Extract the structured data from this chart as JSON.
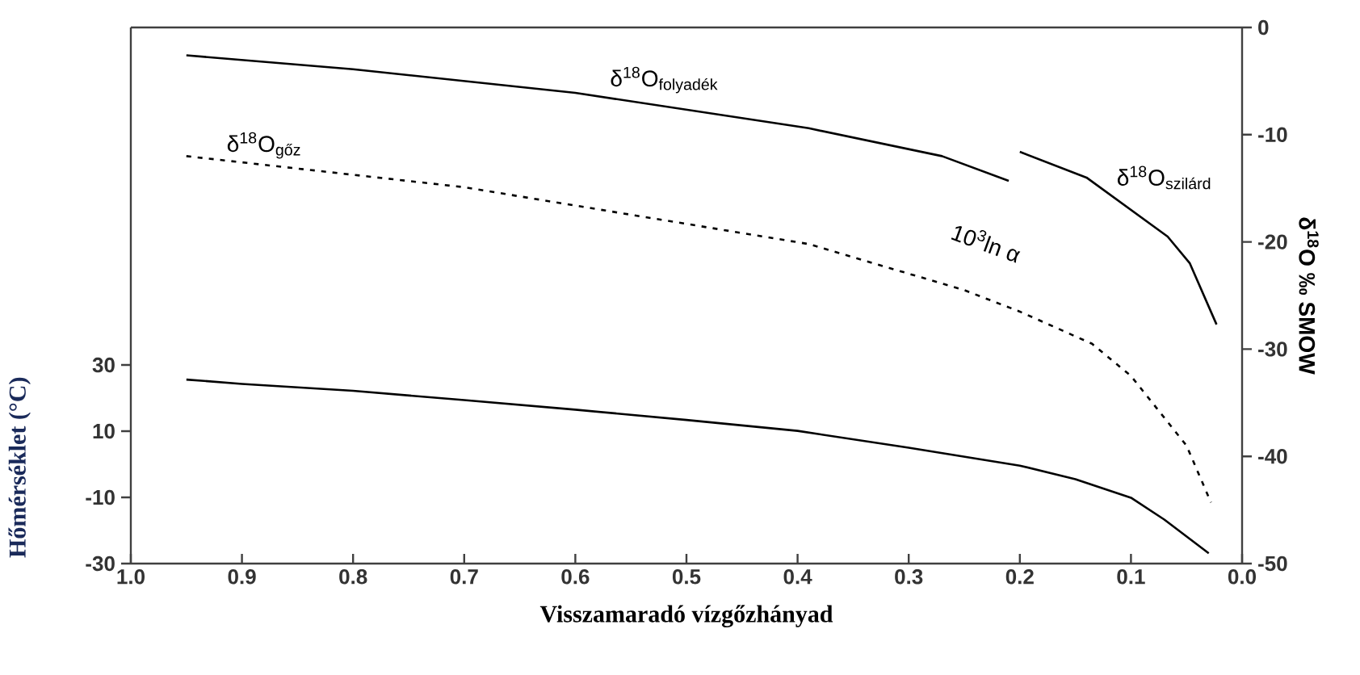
{
  "chart_data": {
    "type": "line",
    "xlabel": "Visszamaradó vízgőzhányad",
    "ylabel": "Hőmérséklet (°C)",
    "y2label": "δ$^{18}$O ‰ SMOW",
    "xlim": [
      1.0,
      0.0
    ],
    "xticks": [
      {
        "value": 1.0,
        "label": "1.0"
      },
      {
        "value": 0.9,
        "label": "0.9"
      },
      {
        "value": 0.8,
        "label": "0.8"
      },
      {
        "value": 0.7,
        "label": "0.7"
      },
      {
        "value": 0.6,
        "label": "0.6"
      },
      {
        "value": 0.5,
        "label": "0.5"
      },
      {
        "value": 0.4,
        "label": "0.4"
      },
      {
        "value": 0.3,
        "label": "0.3"
      },
      {
        "value": 0.2,
        "label": "0.2"
      },
      {
        "value": 0.1,
        "label": "0.1"
      },
      {
        "value": 0.0,
        "label": "0.0"
      }
    ],
    "ylim": [
      -30,
      132
    ],
    "yticks": [
      -30,
      -10,
      10,
      30
    ],
    "y2lim": [
      -50,
      0
    ],
    "y2ticks": [
      -50,
      -40,
      -30,
      -20,
      -10,
      0
    ],
    "series": [
      {
        "color": "#000000",
        "line_style": "solid",
        "x": [
          0.95,
          0.9,
          0.8,
          0.7,
          0.6,
          0.5,
          0.4,
          0.3,
          0.2,
          0.15,
          0.1,
          0.07,
          0.03
        ],
        "values": [
          25.6,
          24.3,
          22.2,
          19.4,
          16.5,
          13.4,
          10.1,
          5.0,
          -0.4,
          -4.5,
          -10.1,
          -16.7,
          -26.9
        ]
      },
      {
        "name": "δ$^{18}$O$_{folyadék}$",
        "color": "#000000",
        "line_style": "solid",
        "axis": "y2",
        "x": [
          0.95,
          0.8,
          0.6,
          0.39,
          0.27,
          0.21
        ],
        "values": [
          -2.6,
          -3.9,
          -6.1,
          -9.4,
          -12.0,
          -14.3
        ]
      },
      {
        "name": "δ$^{18}$O$_{szilárd}$",
        "color": "#000000",
        "line_style": "solid",
        "axis": "y2",
        "x": [
          0.2,
          0.14,
          0.067,
          0.047,
          0.023
        ],
        "values": [
          -11.6,
          -14.0,
          -19.5,
          -22.0,
          -27.7
        ]
      },
      {
        "name": "δ$^{18}$O$_{gőz}$",
        "color": "#000000",
        "line_style": "dashed",
        "axis": "y2",
        "x": [
          0.95,
          0.7,
          0.39,
          0.25,
          0.2,
          0.135,
          0.1,
          0.05,
          0.028
        ],
        "values": [
          -12.0,
          -14.9,
          -20.2,
          -24.5,
          -26.5,
          -29.5,
          -32.5,
          -39.0,
          -44.3
        ]
      }
    ],
    "annotations": [
      "10$^{3}$ln α"
    ],
    "grid": false
  }
}
